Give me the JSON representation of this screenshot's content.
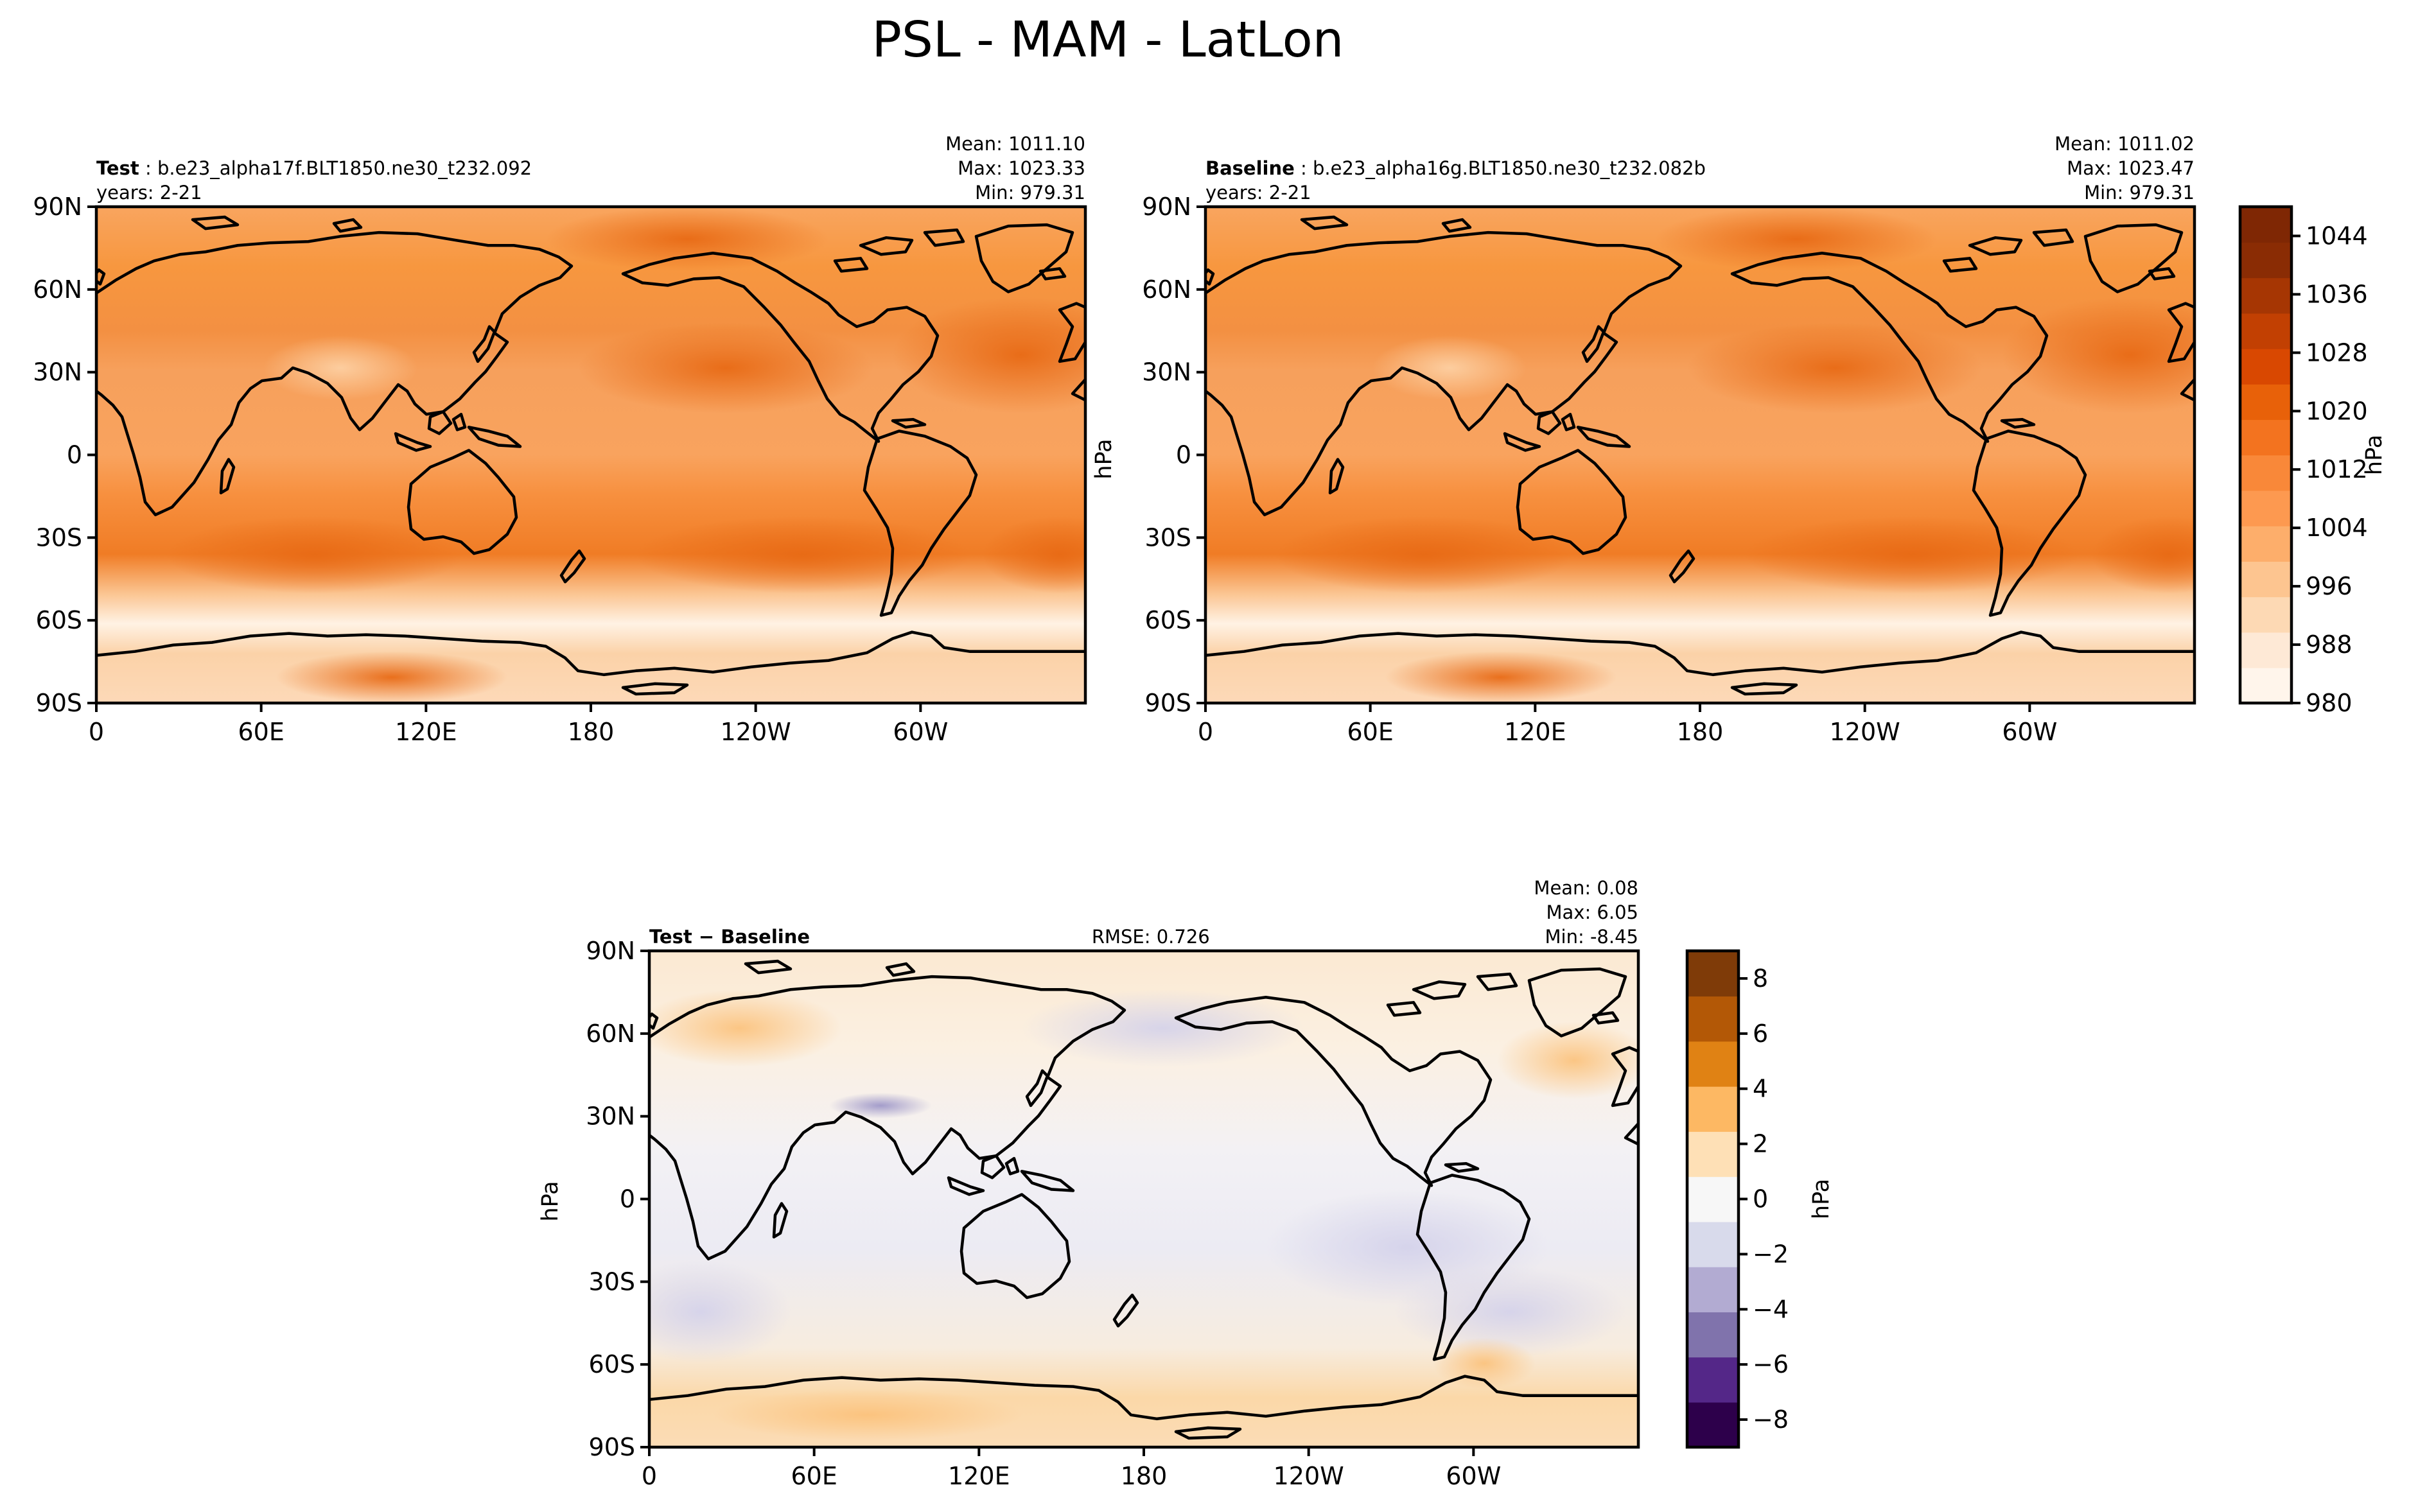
{
  "title": "PSL - MAM - LatLon",
  "chart_data": [
    {
      "type": "heatmap",
      "name": "test",
      "label_bold": "Test",
      "case": "b.e23_alpha17f.BLT1850.ne30_t232.092",
      "years": "years: 2-21",
      "stats": {
        "mean": "Mean: 1011.10",
        "max": "Max: 1023.33",
        "min": "Min: 979.31"
      },
      "xticks": [
        "0",
        "60E",
        "120E",
        "180",
        "120W",
        "60W"
      ],
      "yticks": [
        "90N",
        "60N",
        "30N",
        "0",
        "30S",
        "60S",
        "90S"
      ],
      "xlim": [
        0,
        360
      ],
      "ylim": [
        -90,
        90
      ],
      "colormap": "orange"
    },
    {
      "type": "heatmap",
      "name": "baseline",
      "label_bold": "Baseline",
      "case": "b.e23_alpha16g.BLT1850.ne30_t232.082b",
      "years": "years: 2-21",
      "stats": {
        "mean": "Mean: 1011.02",
        "max": "Max: 1023.47",
        "min": "Min: 979.31"
      },
      "xticks": [
        "0",
        "60E",
        "120E",
        "180",
        "120W",
        "60W"
      ],
      "yticks": [
        "90N",
        "60N",
        "30N",
        "0",
        "30S",
        "60S",
        "90S"
      ],
      "xlim": [
        0,
        360
      ],
      "ylim": [
        -90,
        90
      ],
      "colormap": "orange"
    },
    {
      "type": "heatmap",
      "name": "difference",
      "label_bold": "Test − Baseline",
      "rmse": "RMSE: 0.726",
      "stats": {
        "mean": "Mean:  0.08",
        "max": "Max:  6.05",
        "min": "Min: -8.45"
      },
      "xticks": [
        "0",
        "60E",
        "120E",
        "180",
        "120W",
        "60W"
      ],
      "yticks": [
        "90N",
        "60N",
        "30N",
        "0",
        "30S",
        "60S",
        "90S"
      ],
      "xlim": [
        0,
        360
      ],
      "ylim": [
        -90,
        90
      ],
      "colormap": "purple-orange"
    }
  ],
  "colorbar_main": {
    "label": "hPa",
    "ticks": [
      "1044",
      "1036",
      "1028",
      "1020",
      "1012",
      "1004",
      "996",
      "988",
      "980"
    ],
    "range": [
      980,
      1048
    ],
    "colors_low_to_high": [
      "#fff5eb",
      "#fee9d6",
      "#fdd9b4",
      "#fdc590",
      "#fdae6b",
      "#fd9950",
      "#f98839",
      "#f3731f",
      "#e86109",
      "#d94801",
      "#c24002",
      "#a63603",
      "#8a2c04",
      "#7f2704"
    ]
  },
  "colorbar_diff": {
    "label": "hPa",
    "ticks": [
      "8",
      "6",
      "4",
      "2",
      "0",
      "−2",
      "−4",
      "−6",
      "−8"
    ],
    "range": [
      -9,
      9
    ],
    "colors_low_to_high": [
      "#2d004b",
      "#542788",
      "#8073ac",
      "#b2abd2",
      "#d8daeb",
      "#f7f7f7",
      "#fee0b6",
      "#fdb863",
      "#e08214",
      "#b35806",
      "#7f3b08"
    ]
  },
  "side_labels": {
    "unit_top": "hPa",
    "unit_bottom": "hPa"
  }
}
